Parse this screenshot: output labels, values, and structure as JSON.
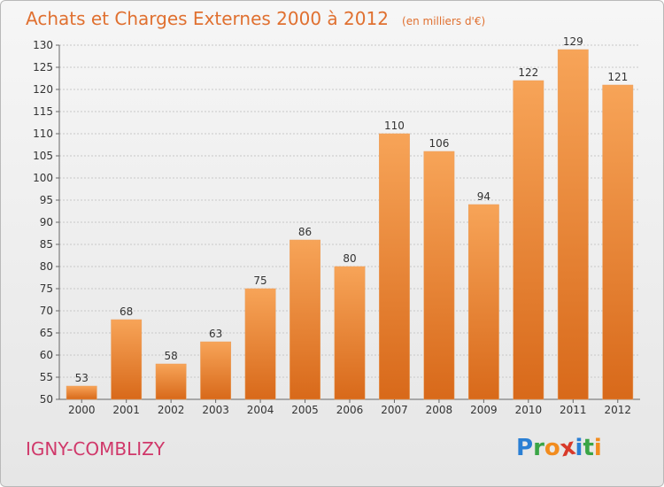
{
  "title": "Achats et Charges Externes 2000 à 2012",
  "unit": "(en milliers d'€)",
  "location": "IGNY-COMBLIZY",
  "brand": {
    "letters": [
      "P",
      "r",
      "o",
      "x",
      "i",
      "t",
      "i"
    ],
    "colors": [
      "#2a7fd4",
      "#3aa546",
      "#f28c1e",
      "#d83a2a",
      "#2a7fd4",
      "#3aa546",
      "#f28c1e"
    ]
  },
  "colors": {
    "bar_top": "#f7a458",
    "bar_bottom": "#d8691a",
    "title": "#e07030",
    "location": "#d0386a"
  },
  "chart_data": {
    "type": "bar",
    "categories": [
      "2000",
      "2001",
      "2002",
      "2003",
      "2004",
      "2005",
      "2006",
      "2007",
      "2008",
      "2009",
      "2010",
      "2011",
      "2012"
    ],
    "values": [
      53,
      68,
      58,
      63,
      75,
      86,
      80,
      110,
      106,
      94,
      122,
      129,
      121
    ],
    "ylim": [
      50,
      130
    ],
    "yticks": [
      50,
      55,
      60,
      65,
      70,
      75,
      80,
      85,
      90,
      95,
      100,
      105,
      110,
      115,
      120,
      125,
      130
    ],
    "grid": true,
    "data_labels": true
  }
}
